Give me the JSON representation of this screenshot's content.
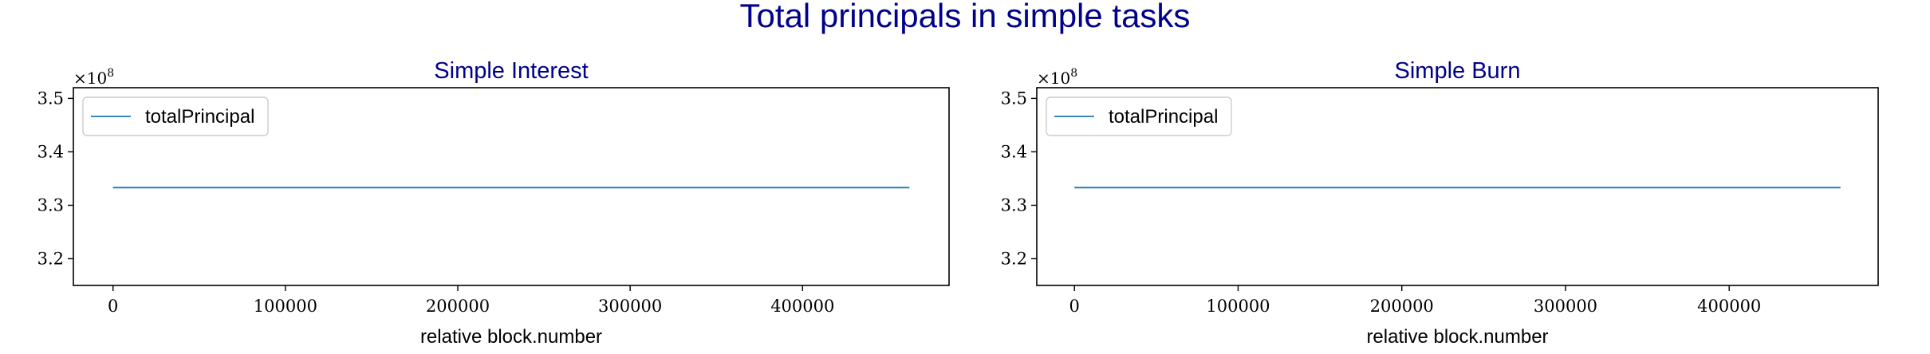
{
  "figure": {
    "title": "Total principals in simple tasks"
  },
  "chart_data": [
    {
      "type": "line",
      "title": "Simple Interest",
      "xlabel": "relative block.number",
      "ylabel": "",
      "xlim": [
        -23000,
        485000
      ],
      "ylim": [
        315000000,
        352000000
      ],
      "xticks": [
        0,
        100000,
        200000,
        300000,
        400000
      ],
      "xtick_labels": [
        "0",
        "100000",
        "200000",
        "300000",
        "400000"
      ],
      "yticks": [
        320000000,
        330000000,
        340000000,
        350000000
      ],
      "ytick_labels": [
        "3.2",
        "3.3",
        "3.4",
        "3.5"
      ],
      "y_offset_label": {
        "base": "×10",
        "exponent": "8"
      },
      "legend": {
        "position": "upper-left",
        "entries": [
          "totalPrincipal"
        ]
      },
      "grid": false,
      "series": [
        {
          "name": "totalPrincipal",
          "color": "#1f77b4",
          "x": [
            0,
            462000
          ],
          "y": [
            333300000,
            333300000
          ]
        }
      ]
    },
    {
      "type": "line",
      "title": "Simple Burn",
      "xlabel": "relative block.number",
      "ylabel": "",
      "xlim": [
        -23000,
        491000
      ],
      "ylim": [
        315000000,
        352000000
      ],
      "xticks": [
        0,
        100000,
        200000,
        300000,
        400000
      ],
      "xtick_labels": [
        "0",
        "100000",
        "200000",
        "300000",
        "400000"
      ],
      "yticks": [
        320000000,
        330000000,
        340000000,
        350000000
      ],
      "ytick_labels": [
        "3.2",
        "3.3",
        "3.4",
        "3.5"
      ],
      "y_offset_label": {
        "base": "×10",
        "exponent": "8"
      },
      "legend": {
        "position": "upper-left",
        "entries": [
          "totalPrincipal"
        ]
      },
      "grid": false,
      "series": [
        {
          "name": "totalPrincipal",
          "color": "#1f77b4",
          "x": [
            0,
            468000
          ],
          "y": [
            333300000,
            333300000
          ]
        }
      ]
    }
  ]
}
